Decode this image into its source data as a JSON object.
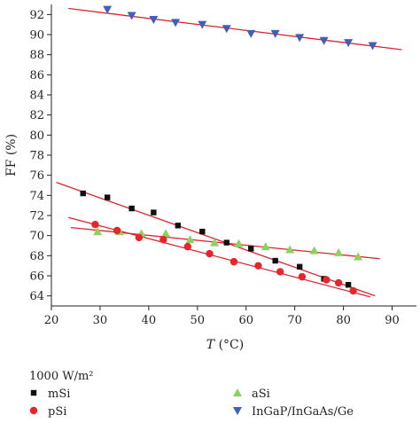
{
  "chart_data": {
    "type": "scatter",
    "title": "",
    "xlabel_italic": "T",
    "xlabel_rest": " (°C)",
    "ylabel": "FF (%)",
    "xlim": [
      20,
      95
    ],
    "ylim": [
      63,
      93
    ],
    "xticks": [
      20,
      30,
      40,
      50,
      60,
      70,
      80,
      90
    ],
    "yticks": [
      64,
      66,
      68,
      70,
      72,
      74,
      76,
      78,
      80,
      82,
      84,
      86,
      88,
      90,
      92
    ],
    "legend_title": "1000 W/m²",
    "legend_position": "below",
    "series": [
      {
        "name": "mSi",
        "marker": "square",
        "color": "#111111",
        "x": [
          26.5,
          31.5,
          36.5,
          41,
          46,
          51,
          56,
          61,
          66,
          71,
          76,
          81
        ],
        "y": [
          74.2,
          73.8,
          72.7,
          72.3,
          71.0,
          70.4,
          69.3,
          68.7,
          67.5,
          66.9,
          65.7,
          65.1
        ],
        "fit": [
          [
            21,
            75.3
          ],
          [
            86.5,
            64.0
          ]
        ]
      },
      {
        "name": "aSi",
        "marker": "triangle-up",
        "color": "#8bd35f",
        "x": [
          29.5,
          34,
          38.5,
          43.5,
          48.5,
          53.5,
          58.5,
          64,
          69,
          74,
          79,
          83
        ],
        "y": [
          70.4,
          70.4,
          70.2,
          70.2,
          69.6,
          69.3,
          69.2,
          68.9,
          68.6,
          68.5,
          68.3,
          67.9
        ],
        "fit": [
          [
            24,
            70.8
          ],
          [
            87.5,
            67.7
          ]
        ]
      },
      {
        "name": "pSi",
        "marker": "circle",
        "color": "#e8242c",
        "x": [
          29,
          33.5,
          38,
          43,
          48,
          52.5,
          57.5,
          62.5,
          67,
          71.5,
          76.5,
          79,
          82
        ],
        "y": [
          71.1,
          70.5,
          69.8,
          69.6,
          68.9,
          68.2,
          67.4,
          67.0,
          66.4,
          65.9,
          65.6,
          65.3,
          64.5
        ],
        "fit": [
          [
            23.5,
            71.8
          ],
          [
            85.5,
            63.9
          ]
        ]
      },
      {
        "name": "InGaP/InGaAs/Ge",
        "marker": "triangle-down",
        "color": "#3f5fbd",
        "x": [
          31.5,
          36.5,
          41,
          45.5,
          51,
          56,
          61,
          66,
          71,
          76,
          81,
          86
        ],
        "y": [
          92.5,
          91.9,
          91.5,
          91.2,
          91.0,
          90.6,
          90.1,
          90.1,
          89.7,
          89.4,
          89.2,
          88.9
        ],
        "fit": [
          [
            23.5,
            92.6
          ],
          [
            92,
            88.5
          ]
        ]
      }
    ],
    "fit_line_color": "#d9252b"
  }
}
